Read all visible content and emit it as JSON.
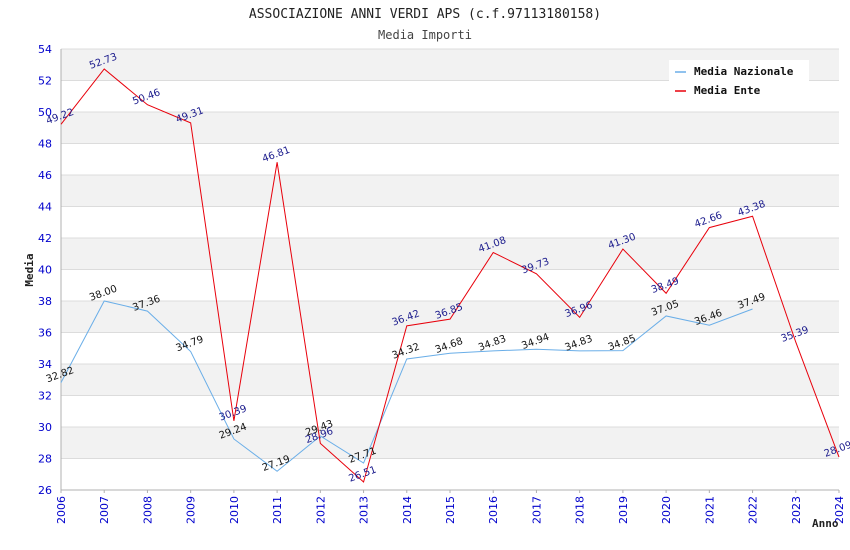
{
  "chart_data": {
    "type": "line",
    "title": "ASSOCIAZIONE ANNI VERDI APS (c.f.97113180158)",
    "subtitle": "Media Importi",
    "xlabel": "Anno",
    "ylabel": "Media",
    "ylim": [
      26,
      54
    ],
    "ytick_step": 2,
    "grid": true,
    "legend_position": "top-right",
    "x": [
      "2006",
      "2007",
      "2008",
      "2009",
      "2010",
      "2011",
      "2012",
      "2013",
      "2014",
      "2015",
      "2016",
      "2017",
      "2018",
      "2019",
      "2020",
      "2021",
      "2022",
      "2023",
      "2024"
    ],
    "series": [
      {
        "name": "Media Nazionale",
        "color": "#6aaee8",
        "values": [
          32.82,
          38.0,
          37.36,
          34.79,
          29.24,
          27.19,
          29.43,
          27.71,
          34.32,
          34.68,
          34.83,
          34.94,
          34.83,
          34.85,
          37.05,
          36.46,
          37.49,
          null,
          null
        ],
        "labels": [
          "32.82",
          "38.00",
          "37.36",
          "34.79",
          "29.24",
          "27.19",
          "29.43",
          "27.71",
          "34.32",
          "34.68",
          "34.83",
          "34.94",
          "34.83",
          "34.85",
          "37.05",
          "36.46",
          "37.49",
          "",
          ""
        ]
      },
      {
        "name": "Media Ente",
        "color": "#e8000b",
        "values": [
          49.22,
          52.73,
          50.46,
          49.31,
          30.39,
          46.81,
          28.96,
          26.51,
          36.42,
          36.85,
          41.08,
          39.73,
          36.96,
          41.3,
          38.49,
          42.66,
          43.38,
          35.39,
          28.09
        ],
        "labels": [
          "49.22",
          "52.73",
          "50.46",
          "49.31",
          "30.39",
          "46.81",
          "28.96",
          "26.51",
          "36.42",
          "36.85",
          "41.08",
          "39.73",
          "36.96",
          "41.30",
          "38.49",
          "42.66",
          "43.38",
          "35.39",
          "28.09"
        ]
      }
    ]
  }
}
